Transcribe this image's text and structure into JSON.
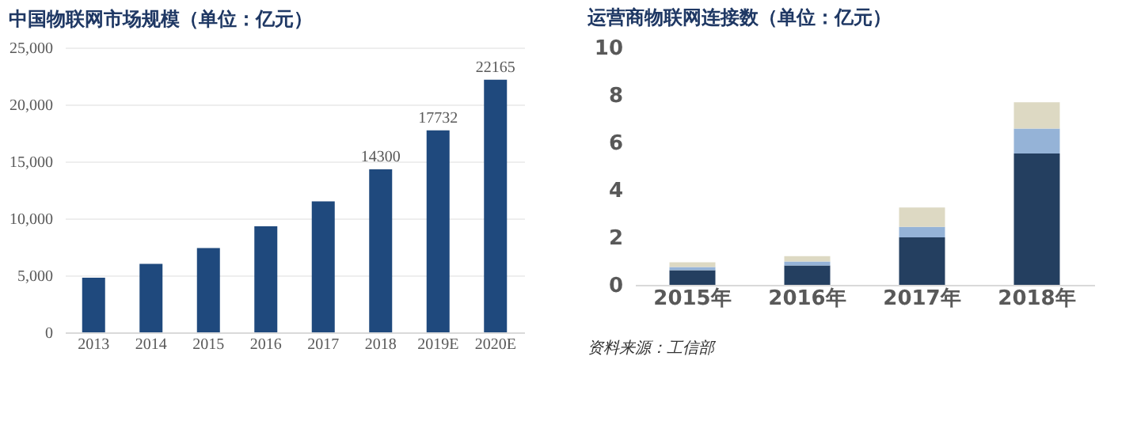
{
  "chart_data": [
    {
      "type": "bar",
      "title": "中国物联网市场规模（单位：亿元）",
      "categories": [
        "2013",
        "2014",
        "2015",
        "2016",
        "2017",
        "2018",
        "2019E",
        "2020E"
      ],
      "values": [
        4800,
        6000,
        7400,
        9300,
        11500,
        14300,
        17732,
        22165
      ],
      "value_labels": [
        null,
        null,
        null,
        null,
        null,
        "14300",
        "17732",
        "22165"
      ],
      "color": "#1f497d",
      "ylim": [
        0,
        25000
      ],
      "yticks": [
        0,
        {
          "value": 5000,
          "label": "5,000"
        },
        {
          "value": 10000,
          "label": "10,000"
        },
        {
          "value": 15000,
          "label": "15,000"
        },
        {
          "value": 20000,
          "label": "20,000"
        },
        {
          "value": 25000,
          "label": "25,000"
        }
      ],
      "grid": "y",
      "legend": false
    },
    {
      "type": "bar",
      "title": "运营商物联网连接数（单位：亿元）",
      "categories": [
        "2015年",
        "2016年",
        "2017年",
        "2018年"
      ],
      "stacked": true,
      "series": [
        {
          "color": "#243f60",
          "values": [
            0.62,
            0.82,
            2.0,
            5.53
          ]
        },
        {
          "color": "#95b3d7",
          "values": [
            0.13,
            0.16,
            0.44,
            1.05
          ]
        },
        {
          "color": "#ddd9c3",
          "values": [
            0.2,
            0.23,
            0.82,
            1.11
          ]
        }
      ],
      "ylim": [
        0,
        10
      ],
      "yticks": [
        0,
        2,
        4,
        6,
        8,
        10
      ],
      "grid": false,
      "legend": false,
      "annotations": [
        "资料来源：工信部"
      ]
    }
  ]
}
